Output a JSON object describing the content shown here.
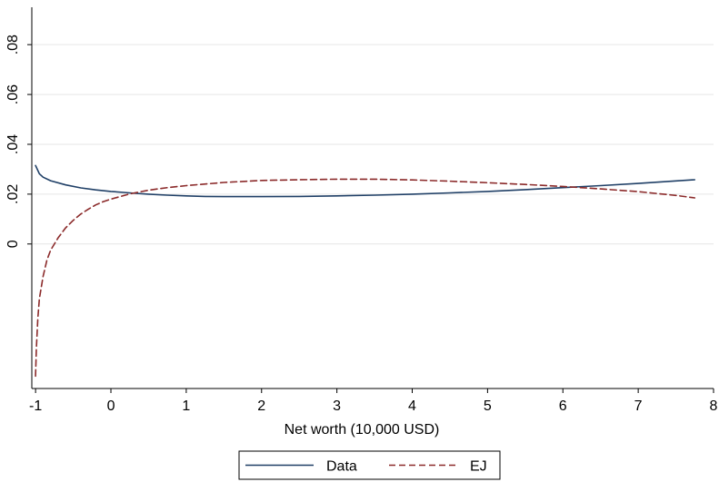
{
  "chart_data": {
    "type": "line",
    "title": "",
    "xlabel": "Net worth (10,000 USD)",
    "ylabel": "",
    "xlim": [
      -1.05,
      8.0
    ],
    "ylim": [
      -0.058,
      0.095
    ],
    "x_ticks": [
      -1,
      0,
      1,
      2,
      3,
      4,
      5,
      6,
      7,
      8
    ],
    "x_tick_labels": [
      "-1",
      "0",
      "1",
      "2",
      "3",
      "4",
      "5",
      "6",
      "7",
      "8"
    ],
    "y_ticks": [
      0,
      0.02,
      0.04,
      0.06,
      0.08
    ],
    "y_tick_labels": [
      "0",
      ".02",
      ".04",
      ".06",
      ".08"
    ],
    "grid": true,
    "legend_position": "bottom",
    "series": [
      {
        "name": "Data",
        "color": "#1f3f66",
        "dash": "solid",
        "x": [
          -1.0,
          -0.95,
          -0.9,
          -0.8,
          -0.6,
          -0.4,
          -0.2,
          0,
          0.25,
          0.5,
          0.75,
          1,
          1.25,
          1.5,
          1.75,
          2,
          2.5,
          3,
          3.5,
          4,
          4.5,
          5,
          5.5,
          6,
          6.5,
          7,
          7.5,
          7.75
        ],
        "y": [
          0.0315,
          0.0282,
          0.0268,
          0.0254,
          0.0237,
          0.0225,
          0.0217,
          0.0211,
          0.0205,
          0.02,
          0.0196,
          0.0193,
          0.0191,
          0.019,
          0.019,
          0.019,
          0.0191,
          0.0193,
          0.0196,
          0.02,
          0.0205,
          0.0211,
          0.0218,
          0.0226,
          0.0234,
          0.0243,
          0.0253,
          0.0258
        ]
      },
      {
        "name": "EJ",
        "color": "#8b2a2a",
        "dash": "dashed",
        "x": [
          -1.0,
          -0.99,
          -0.97,
          -0.95,
          -0.9,
          -0.85,
          -0.8,
          -0.7,
          -0.6,
          -0.5,
          -0.4,
          -0.3,
          -0.2,
          -0.1,
          0,
          0.25,
          0.5,
          0.75,
          1,
          1.5,
          2,
          2.5,
          3,
          3.5,
          4,
          4.5,
          5,
          5.5,
          6,
          6.5,
          7,
          7.5,
          7.75
        ],
        "y": [
          -0.053,
          -0.042,
          -0.03,
          -0.022,
          -0.013,
          -0.0065,
          -0.0025,
          0.0025,
          0.0065,
          0.0095,
          0.012,
          0.014,
          0.0157,
          0.017,
          0.018,
          0.0201,
          0.0216,
          0.0226,
          0.0234,
          0.0247,
          0.0255,
          0.0258,
          0.026,
          0.026,
          0.0257,
          0.0252,
          0.0246,
          0.0239,
          0.0231,
          0.0221,
          0.021,
          0.0195,
          0.0185
        ]
      }
    ]
  }
}
